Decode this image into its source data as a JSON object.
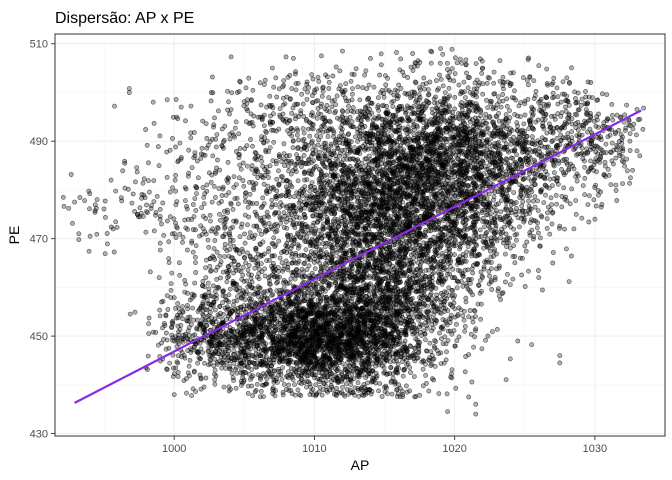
{
  "chart_data": {
    "type": "scatter",
    "title": "Dispersão: AP x PE",
    "xlabel": "AP",
    "ylabel": "PE",
    "xlim": [
      991.5,
      1035
    ],
    "ylim": [
      429.5,
      512
    ],
    "x_ticks": [
      1000,
      1010,
      1020,
      1030
    ],
    "y_ticks": [
      430,
      450,
      470,
      490,
      510
    ],
    "x_tick_labels": [
      "1000",
      "1010",
      "1020",
      "1030"
    ],
    "y_tick_labels": [
      "430",
      "450",
      "470",
      "490",
      "510"
    ],
    "grid": true,
    "point_color": "#000000",
    "point_opacity": 0.3,
    "trend_line": {
      "color": "#8a2be2",
      "points": [
        [
          992.9,
          436.3
        ],
        [
          1033.3,
          496.3
        ]
      ]
    },
    "clusters": [
      {
        "x": 1009.5,
        "y": 449.5,
        "sx": 3.8,
        "sy": 5.5,
        "n": 2200
      },
      {
        "x": 1013.5,
        "y": 456.0,
        "sx": 2.8,
        "sy": 8.5,
        "n": 1300
      },
      {
        "x": 1015.5,
        "y": 480.0,
        "sx": 3.8,
        "sy": 9.5,
        "n": 1800
      },
      {
        "x": 1019.5,
        "y": 488.0,
        "sx": 3.0,
        "sy": 8.0,
        "n": 1200
      },
      {
        "x": 1012.0,
        "y": 476.0,
        "sx": 3.5,
        "sy": 9.0,
        "n": 800
      },
      {
        "x": 1018.0,
        "y": 464.0,
        "sx": 2.5,
        "sy": 9.0,
        "n": 600
      },
      {
        "x": 1024.5,
        "y": 486.0,
        "sx": 2.6,
        "sy": 7.0,
        "n": 500
      },
      {
        "x": 1029.5,
        "y": 489.0,
        "sx": 2.0,
        "sy": 5.0,
        "n": 220
      },
      {
        "x": 1005.5,
        "y": 462.0,
        "sx": 2.5,
        "sy": 7.5,
        "n": 350
      },
      {
        "x": 1002.5,
        "y": 450.0,
        "sx": 2.0,
        "sy": 4.5,
        "n": 250
      },
      {
        "x": 1003.5,
        "y": 486.0,
        "sx": 3.0,
        "sy": 7.0,
        "n": 200
      },
      {
        "x": 1000.0,
        "y": 474.0,
        "sx": 3.0,
        "sy": 5.0,
        "n": 90
      },
      {
        "x": 996.5,
        "y": 477.0,
        "sx": 2.5,
        "sy": 2.5,
        "n": 40
      },
      {
        "x": 1022.5,
        "y": 472.0,
        "sx": 2.0,
        "sy": 5.0,
        "n": 180
      },
      {
        "x": 1027.0,
        "y": 497.5,
        "sx": 2.0,
        "sy": 3.0,
        "n": 80
      },
      {
        "x": 1010.0,
        "y": 497.0,
        "sx": 3.0,
        "sy": 4.0,
        "n": 180
      }
    ],
    "points": [
      [
        992.9,
        477.5
      ],
      [
        993.2,
        471.0
      ],
      [
        993.2,
        469.8
      ],
      [
        994.0,
        470.5
      ],
      [
        995.5,
        482.0
      ],
      [
        996.8,
        500.8
      ],
      [
        996.8,
        500.0
      ],
      [
        998.5,
        498.0
      ],
      [
        999.5,
        498.5
      ],
      [
        1000.5,
        497.0
      ],
      [
        1001.2,
        497.2
      ],
      [
        998.0,
        443.5
      ],
      [
        1000.0,
        438.0
      ],
      [
        1002.5,
        483.5
      ],
      [
        1003.0,
        488.8
      ],
      [
        999.0,
        476.0
      ],
      [
        1019.5,
        434.5
      ],
      [
        1021.5,
        436.0
      ],
      [
        1021.5,
        434.0
      ],
      [
        1021.0,
        437.5
      ],
      [
        1027.5,
        444.5
      ],
      [
        1027.5,
        446.0
      ],
      [
        1021.5,
        451.5
      ],
      [
        1024.5,
        449.0
      ],
      [
        1033.0,
        496.5
      ],
      [
        1033.2,
        494.5
      ],
      [
        1033.0,
        488.0
      ],
      [
        1033.2,
        487.0
      ],
      [
        1032.5,
        490.0
      ],
      [
        1031.5,
        481.0
      ],
      [
        1030.5,
        477.0
      ],
      [
        1030.0,
        474.0
      ],
      [
        1028.5,
        472.0
      ],
      [
        1026.0,
        462.0
      ],
      [
        1025.0,
        468.5
      ],
      [
        1027.0,
        465.0
      ],
      [
        1020.5,
        506.0
      ],
      [
        1019.0,
        509.0
      ],
      [
        1017.0,
        508.0
      ],
      [
        1014.0,
        507.0
      ],
      [
        1012.0,
        508.5
      ],
      [
        1010.5,
        507.5
      ],
      [
        1008.5,
        507.0
      ],
      [
        1007.0,
        505.0
      ],
      [
        1022.0,
        505.0
      ],
      [
        1024.0,
        504.0
      ],
      [
        1026.0,
        505.5
      ],
      [
        1028.0,
        503.0
      ],
      [
        1004.5,
        500.0
      ],
      [
        1005.5,
        498.5
      ],
      [
        1006.5,
        502.5
      ],
      [
        1015.0,
        439.5
      ],
      [
        1012.0,
        439.5
      ],
      [
        1016.0,
        440.0
      ],
      [
        1018.5,
        441.0
      ],
      [
        1013.5,
        437.8
      ]
    ]
  }
}
